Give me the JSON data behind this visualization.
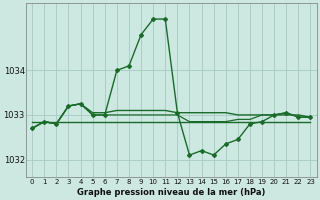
{
  "title": "Graphe pression niveau de la mer (hPa)",
  "bg_color": "#cce8e0",
  "grid_color": "#aacfc8",
  "line_color": "#1a6b2a",
  "ylim": [
    1031.6,
    1035.5
  ],
  "yticks": [
    1032,
    1033,
    1034
  ],
  "series_main": [
    1032.7,
    1032.85,
    1032.8,
    1033.2,
    1033.25,
    1033.0,
    1033.0,
    1034.0,
    1034.1,
    1034.8,
    1035.15,
    1035.15,
    1033.05,
    1032.1,
    1032.2,
    1032.1,
    1032.35,
    1032.45,
    1032.8,
    1032.85,
    1033.0,
    1033.05,
    1032.95,
    1032.95
  ],
  "series_flat1": [
    1032.85,
    1032.85,
    1032.85,
    1032.85,
    1032.85,
    1032.85,
    1032.85,
    1032.85,
    1032.85,
    1032.85,
    1032.85,
    1032.85,
    1032.85,
    1032.85,
    1032.85,
    1032.85,
    1032.85,
    1032.85,
    1032.85,
    1032.85,
    1032.85,
    1032.85,
    1032.85,
    1032.85
  ],
  "series_mid": [
    1032.7,
    1032.85,
    1032.8,
    1033.2,
    1033.25,
    1033.05,
    1033.05,
    1033.1,
    1033.1,
    1033.1,
    1033.1,
    1033.1,
    1033.05,
    1033.05,
    1033.05,
    1033.05,
    1033.05,
    1033.0,
    1033.0,
    1033.0,
    1033.0,
    1033.0,
    1033.0,
    1032.95
  ],
  "series_low": [
    1032.7,
    1032.85,
    1032.8,
    1033.2,
    1033.25,
    1033.0,
    1033.0,
    1033.0,
    1033.0,
    1033.0,
    1033.0,
    1033.0,
    1033.0,
    1032.85,
    1032.85,
    1032.85,
    1032.85,
    1032.9,
    1032.9,
    1033.0,
    1033.0,
    1033.05,
    1032.95,
    1032.95
  ]
}
